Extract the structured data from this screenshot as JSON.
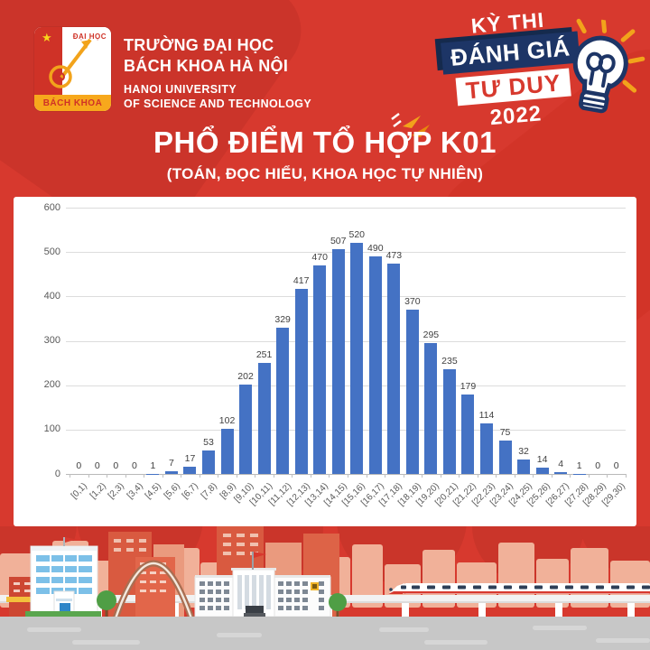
{
  "header": {
    "logo": {
      "dai_hoc": "ĐẠI HỌC",
      "bach_khoa": "BÁCH KHOA"
    },
    "university_line1": "TRƯỜNG ĐẠI HỌC",
    "university_line2": "BÁCH KHOA HÀ NỘI",
    "university_line3": "HANOI UNIVERSITY",
    "university_line4": "OF SCIENCE AND TECHNOLOGY"
  },
  "badge": {
    "line1": "KỲ THI",
    "line2": "ĐÁNH GIÁ",
    "line3": "TƯ DUY",
    "year": "2022"
  },
  "title": "PHỔ ĐIỂM TỔ HỢP K01",
  "subtitle": "(TOÁN, ĐỌC HIỂU, KHOA HỌC TỰ NHIÊN)",
  "icons": {
    "star": "★"
  },
  "colors": {
    "background_red": "#d7392e",
    "navy": "#1d3566",
    "orange": "#f2a31b",
    "bar_blue": "#4472c4"
  },
  "chart_data": {
    "type": "bar",
    "title": "PHỔ ĐIỂM TỔ HỢP K01",
    "subtitle": "(TOÁN, ĐỌC HIỂU, KHOA HỌC TỰ NHIÊN)",
    "categories": [
      "[0,1)",
      "[1,2)",
      "[2,3)",
      "[3,4)",
      "[4,5)",
      "[5,6)",
      "[6,7)",
      "[7,8)",
      "[8,9)",
      "[9,10)",
      "[10,11)",
      "[11,12)",
      "[12,13)",
      "[13,14)",
      "[14,15)",
      "[15,16)",
      "[16,17)",
      "[17,18)",
      "[18,19)",
      "[19,20)",
      "[20,21)",
      "[21,22)",
      "[22,23)",
      "[23,24)",
      "[24,25)",
      "[25,26)",
      "[26,27)",
      "[27,28)",
      "[28,29)",
      "[29,30)"
    ],
    "values": [
      0,
      0,
      0,
      0,
      1,
      7,
      17,
      53,
      102,
      202,
      251,
      329,
      417,
      470,
      507,
      520,
      490,
      473,
      370,
      295,
      235,
      179,
      114,
      75,
      32,
      14,
      4,
      1,
      0,
      0
    ],
    "xlabel": "",
    "ylabel": "",
    "ylim": [
      0,
      600
    ],
    "y_ticks": [
      0,
      100,
      200,
      300,
      400,
      500,
      600
    ],
    "grid": true,
    "legend": false,
    "bar_color": "#4472c4",
    "value_label_color": "#404040",
    "axis_label_color": "#595959"
  }
}
